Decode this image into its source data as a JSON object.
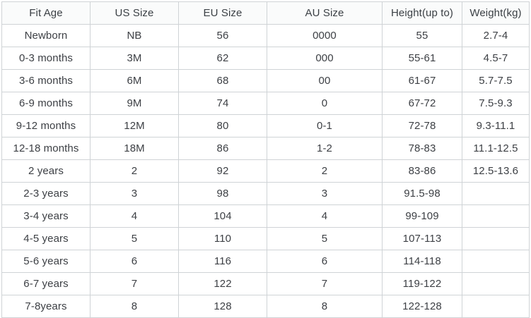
{
  "size_chart": {
    "columns": [
      "Fit Age",
      "US Size",
      "EU Size",
      "AU Size",
      "Height(up to)",
      "Weight(kg)"
    ],
    "rows": [
      [
        "Newborn",
        "NB",
        "56",
        "0000",
        "55",
        "2.7-4"
      ],
      [
        "0-3 months",
        "3M",
        "62",
        "000",
        "55-61",
        "4.5-7"
      ],
      [
        "3-6 months",
        "6M",
        "68",
        "00",
        "61-67",
        "5.7-7.5"
      ],
      [
        "6-9 months",
        "9M",
        "74",
        "0",
        "67-72",
        "7.5-9.3"
      ],
      [
        "9-12 months",
        "12M",
        "80",
        "0-1",
        "72-78",
        "9.3-11.1"
      ],
      [
        "12-18 months",
        "18M",
        "86",
        "1-2",
        "78-83",
        "11.1-12.5"
      ],
      [
        "2 years",
        "2",
        "92",
        "2",
        "83-86",
        "12.5-13.6"
      ],
      [
        "2-3 years",
        "3",
        "98",
        "3",
        "91.5-98",
        ""
      ],
      [
        "3-4 years",
        "4",
        "104",
        "4",
        "99-109",
        ""
      ],
      [
        "4-5 years",
        "5",
        "110",
        "5",
        "107-113",
        ""
      ],
      [
        "5-6 years",
        "6",
        "116",
        "6",
        "114-118",
        ""
      ],
      [
        "6-7 years",
        "7",
        "122",
        "7",
        "119-122",
        ""
      ],
      [
        "7-8years",
        "8",
        "128",
        "8",
        "122-128",
        ""
      ]
    ],
    "colors": {
      "border": "#cfd3d6",
      "header_background": "#fafbfb",
      "text": "#3d4045"
    }
  }
}
